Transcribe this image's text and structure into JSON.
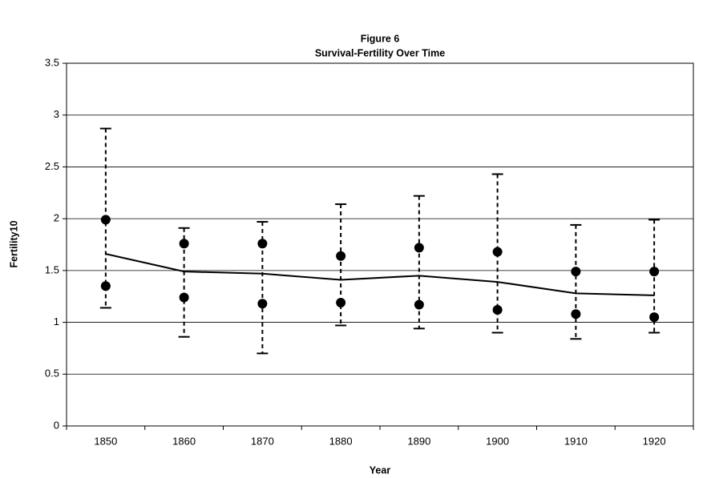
{
  "chart_data": {
    "type": "line",
    "title": "Figure 6",
    "subtitle": "Survival-Fertility Over Time",
    "x_label": "Year",
    "y_label": "Fertility10",
    "categories": [
      "1850",
      "1860",
      "1870",
      "1880",
      "1890",
      "1900",
      "1910",
      "1920"
    ],
    "values": [
      1.66,
      1.49,
      1.47,
      1.41,
      1.45,
      1.39,
      1.28,
      1.26
    ],
    "markers_high": [
      1.99,
      1.76,
      1.76,
      1.64,
      1.72,
      1.68,
      1.49,
      1.49
    ],
    "markers_low": [
      1.35,
      1.24,
      1.18,
      1.19,
      1.17,
      1.12,
      1.08,
      1.05
    ],
    "whisker_high": [
      2.87,
      1.91,
      1.97,
      2.14,
      2.22,
      2.43,
      1.94,
      1.99
    ],
    "whisker_low": [
      1.14,
      0.86,
      0.7,
      0.97,
      0.94,
      0.9,
      0.84,
      0.9
    ],
    "color": "#000000",
    "ylim": [
      0,
      3.5
    ],
    "yticks": [
      0,
      0.5,
      1,
      1.5,
      2,
      2.5,
      3,
      3.5
    ],
    "grid": true
  }
}
